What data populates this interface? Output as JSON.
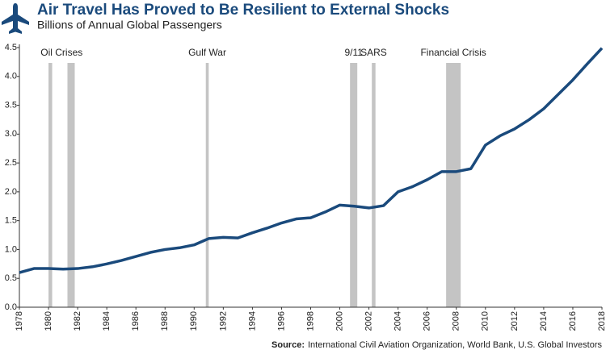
{
  "chart_data": {
    "type": "line",
    "title": "Air Travel Has Proved to Be Resilient to External Shocks",
    "subtitle": "Billions of Annual Global Passengers",
    "source_label": "Source:",
    "source_text": "International Civil Aviation Organization, World Bank, U.S. Global Investors",
    "x": [
      1978,
      1979,
      1980,
      1981,
      1982,
      1983,
      1984,
      1985,
      1986,
      1987,
      1988,
      1989,
      1990,
      1991,
      1992,
      1993,
      1994,
      1995,
      1996,
      1997,
      1998,
      1999,
      2000,
      2001,
      2002,
      2003,
      2004,
      2005,
      2006,
      2007,
      2008,
      2009,
      2010,
      2011,
      2012,
      2013,
      2014,
      2015,
      2016,
      2017,
      2018
    ],
    "series": [
      {
        "color": "#1a4a7c",
        "values": [
          0.6,
          0.67,
          0.67,
          0.66,
          0.67,
          0.7,
          0.75,
          0.81,
          0.88,
          0.95,
          1.0,
          1.03,
          1.08,
          1.19,
          1.21,
          1.2,
          1.29,
          1.37,
          1.46,
          1.53,
          1.55,
          1.65,
          1.77,
          1.75,
          1.72,
          1.76,
          2.0,
          2.09,
          2.21,
          2.35,
          2.35,
          2.4,
          2.81,
          2.97,
          3.09,
          3.25,
          3.44,
          3.69,
          3.94,
          4.22,
          4.49
        ]
      }
    ],
    "events": [
      {
        "label": "Oil Crises",
        "color": "#c4c4c4",
        "bands": [
          [
            1980.0,
            1980.25
          ],
          [
            1981.3,
            1981.8
          ]
        ]
      },
      {
        "label": "Gulf War",
        "color": "#c4c4c4",
        "bands": [
          [
            1990.8,
            1991.0
          ]
        ]
      },
      {
        "label": "9/11",
        "color": "#c4c4c4",
        "bands": [
          [
            2000.7,
            2001.2
          ]
        ]
      },
      {
        "label": "SARS",
        "color": "#c4c4c4",
        "bands": [
          [
            2002.2,
            2002.45
          ]
        ]
      },
      {
        "label": "Financial Crisis",
        "color": "#c4c4c4",
        "bands": [
          [
            2007.3,
            2008.3
          ]
        ]
      }
    ],
    "xlim": [
      1978,
      2018
    ],
    "xticks": [
      1978,
      1980,
      1982,
      1984,
      1986,
      1988,
      1990,
      1992,
      1994,
      1996,
      1998,
      2000,
      2002,
      2004,
      2006,
      2008,
      2010,
      2012,
      2014,
      2016,
      2018
    ],
    "ylim": [
      0,
      4.5
    ],
    "yticks": [
      {
        "value": 0,
        "label": "0.0"
      },
      0.5,
      {
        "value": 1,
        "label": "1.0"
      },
      1.5,
      {
        "value": 2,
        "label": "2.0"
      },
      2.5,
      {
        "value": 3,
        "label": "3.0"
      },
      3.5,
      {
        "value": 4,
        "label": "4.0"
      },
      4.5
    ]
  }
}
